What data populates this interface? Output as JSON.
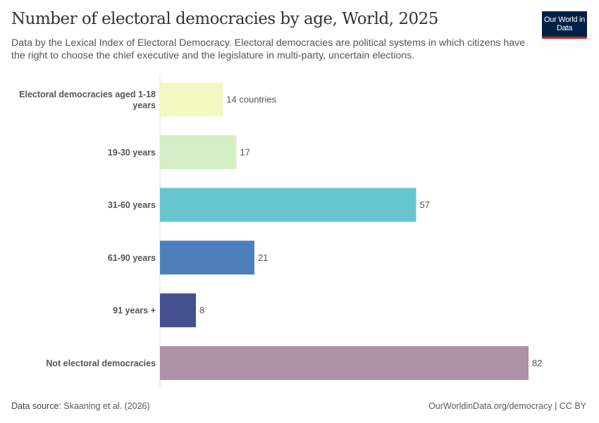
{
  "header": {
    "title": "Number of electoral democracies by age, World, 2025",
    "subtitle": "Data by the Lexical Index of Electoral Democracy. Electoral democracies are political systems in which citizens have the right to choose the chief executive and the legislature in multi-party, uncertain elections.",
    "logo": "Our World in Data"
  },
  "footer": {
    "source_label": "Data source:",
    "source": "Skaaning et al. (2026)",
    "url": "OurWorldinData.org/democracy | CC BY"
  },
  "chart_data": {
    "type": "bar",
    "orientation": "horizontal",
    "title": "Number of electoral democracies by age, World, 2025",
    "categories": [
      "Electoral democracies aged 1-18 years",
      "19-30 years",
      "31-60 years",
      "61-90 years",
      "91 years +",
      "Not electoral democracies"
    ],
    "values": [
      14,
      17,
      57,
      21,
      8,
      82
    ],
    "data_labels": [
      "14 countries",
      "17",
      "57",
      "21",
      "8",
      "82"
    ],
    "colors": [
      "#f1f8c0",
      "#d3edc4",
      "#66c5cf",
      "#4c7fba",
      "#45508f",
      "#ad91a5"
    ],
    "xlim": [
      0,
      82
    ],
    "grid": false
  }
}
